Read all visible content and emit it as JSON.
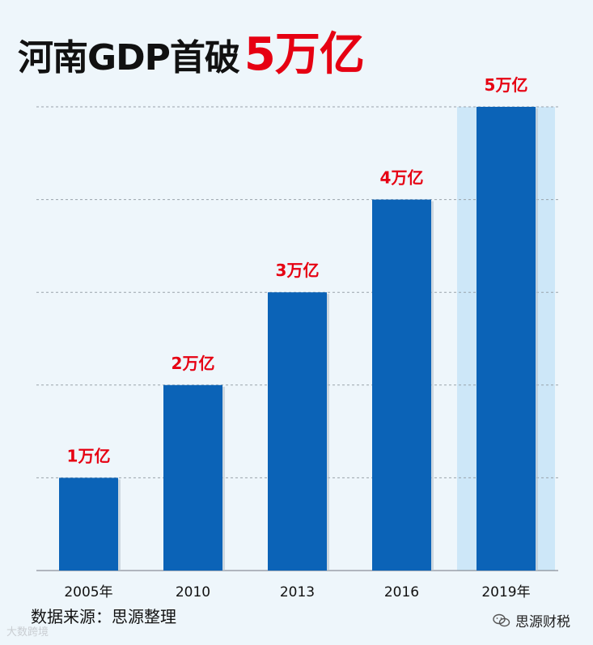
{
  "title": {
    "main": "河南GDP首破",
    "accent": "5万亿"
  },
  "source": "数据来源：思源整理",
  "watermark_left": "大数跨境",
  "watermark_right": "思源财税",
  "colors": {
    "bar": "#0b63b7",
    "highlight_band": "#cde7f8",
    "label": "#e60012",
    "grid": "#9aa3ab",
    "background": "#eef6fb"
  },
  "chart_data": {
    "type": "bar",
    "categories": [
      "2005年",
      "2010",
      "2013",
      "2016",
      "2019年"
    ],
    "values": [
      1,
      2,
      3,
      4,
      5
    ],
    "data_labels": [
      "1万亿",
      "2万亿",
      "3万亿",
      "4万亿",
      "5万亿"
    ],
    "ylim": [
      0,
      5
    ],
    "y_gridlines": [
      1,
      2,
      3,
      4,
      5
    ],
    "highlight_category": "2019年",
    "grid": true,
    "legend": false,
    "xlabel": "",
    "ylabel": ""
  }
}
